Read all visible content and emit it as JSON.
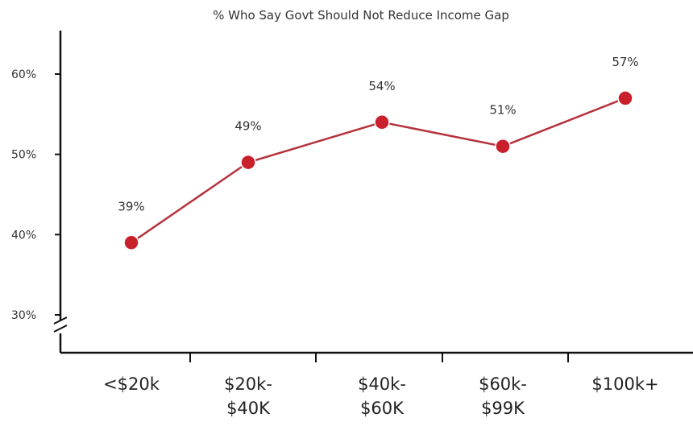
{
  "chart_data": {
    "type": "line",
    "title": "% Who Say Govt Should Not Reduce Income Gap",
    "xlabel": "",
    "ylabel": "",
    "categories": [
      [
        "<$20k"
      ],
      [
        "$20k-",
        "$40K"
      ],
      [
        "$40k-",
        "$60K"
      ],
      [
        "$60k-",
        "$99K"
      ],
      [
        "$100k+"
      ]
    ],
    "series": [
      {
        "values": [
          39,
          49,
          54,
          51,
          57
        ],
        "labels": [
          "39%",
          "49%",
          "54%",
          "51%",
          "57%"
        ]
      }
    ],
    "yticks": [
      30,
      40,
      50,
      60
    ],
    "ytick_labels": [
      "30%",
      "40%",
      "50%",
      "60%"
    ],
    "ylim": [
      25,
      65
    ],
    "axis_break": true,
    "grid": false,
    "legend": "none",
    "colors": {
      "line": "#b5333d",
      "marker": "#c9202b"
    }
  }
}
